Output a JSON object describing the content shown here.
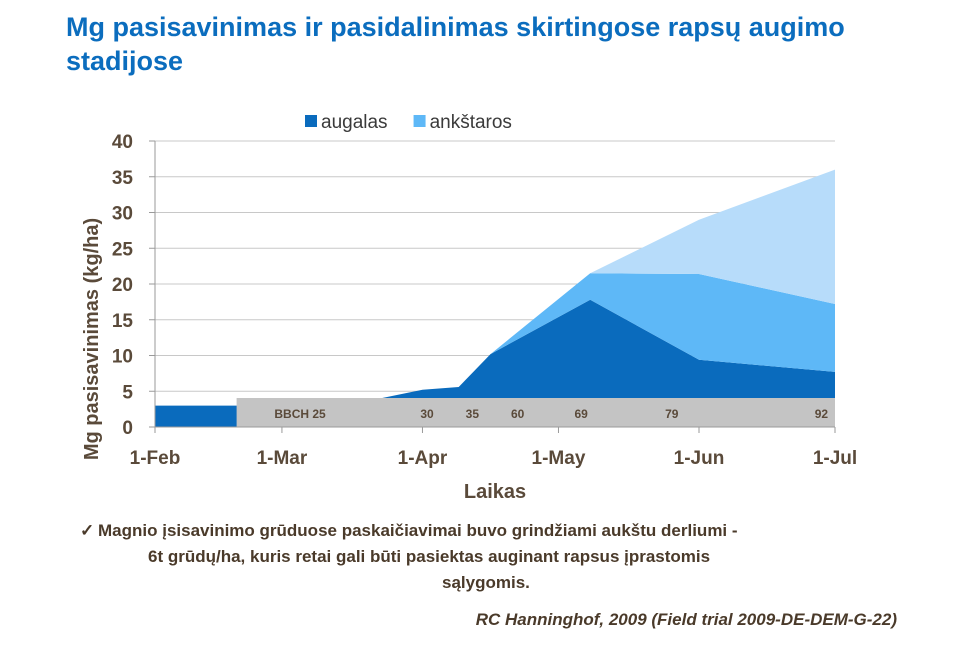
{
  "title": "Mg pasisavinimas ir pasidalinimas skirtingose rapsų augimo stadijose",
  "note": {
    "check": "✓",
    "line1": "Magnio įsisavinimo grūduose paskaičiavimai buvo grindžiami aukštu derliumi -",
    "line2": "6t grūdų/ha, kuris retai gali būti pasiektas auginant rapsus įprastomis",
    "line3": "sąlygomis."
  },
  "source": "RC Hanninghof, 2009 (Field trial 2009-DE-DEM-G-22)",
  "chart_data": {
    "type": "area",
    "stacked": true,
    "xlabel": "Laikas",
    "ylabel": "Mg pasisavinimas (kg/ha)",
    "ylim": [
      0,
      40
    ],
    "yticks": [
      "0",
      "5",
      "10",
      "15",
      "20",
      "25",
      "30",
      "35",
      "40"
    ],
    "xlim": [
      "2009-02-01",
      "2009-07-01"
    ],
    "xticks": [
      "1-Feb",
      "1-Mar",
      "1-Apr",
      "1-May",
      "1-Jun",
      "1-Jul"
    ],
    "legend_position": "top",
    "series": [
      {
        "name": "augalas",
        "color": "#0a6bbd",
        "points": [
          [
            "2009-02-01",
            3
          ],
          [
            "2009-03-01",
            3
          ],
          [
            "2009-03-15",
            3
          ],
          [
            "2009-04-01",
            5.2
          ],
          [
            "2009-04-09",
            5.6
          ],
          [
            "2009-04-16",
            10.2
          ],
          [
            "2009-05-08",
            17.8
          ],
          [
            "2009-06-01",
            9.4
          ],
          [
            "2009-07-01",
            7.7
          ]
        ]
      },
      {
        "name": "ankštaros",
        "color": "#5eb8f7",
        "points": [
          [
            "2009-02-01",
            0
          ],
          [
            "2009-04-16",
            0
          ],
          [
            "2009-05-08",
            3.7
          ],
          [
            "2009-06-01",
            12
          ],
          [
            "2009-07-01",
            9.5
          ]
        ]
      },
      {
        "name": "",
        "color": "#b7dcfa",
        "points": [
          [
            "2009-02-01",
            0
          ],
          [
            "2009-05-08",
            0
          ],
          [
            "2009-06-01",
            7.6
          ],
          [
            "2009-07-01",
            18.8
          ]
        ]
      }
    ],
    "growth_stages": [
      {
        "label": "BBCH 25",
        "date": "2009-03-05"
      },
      {
        "label": "30",
        "date": "2009-04-02"
      },
      {
        "label": "35",
        "date": "2009-04-12"
      },
      {
        "label": "60",
        "date": "2009-04-22"
      },
      {
        "label": "69",
        "date": "2009-05-06"
      },
      {
        "label": "79",
        "date": "2009-05-26"
      },
      {
        "label": "92",
        "date": "2009-06-28"
      }
    ],
    "stage_band_start": "2009-02-19"
  }
}
